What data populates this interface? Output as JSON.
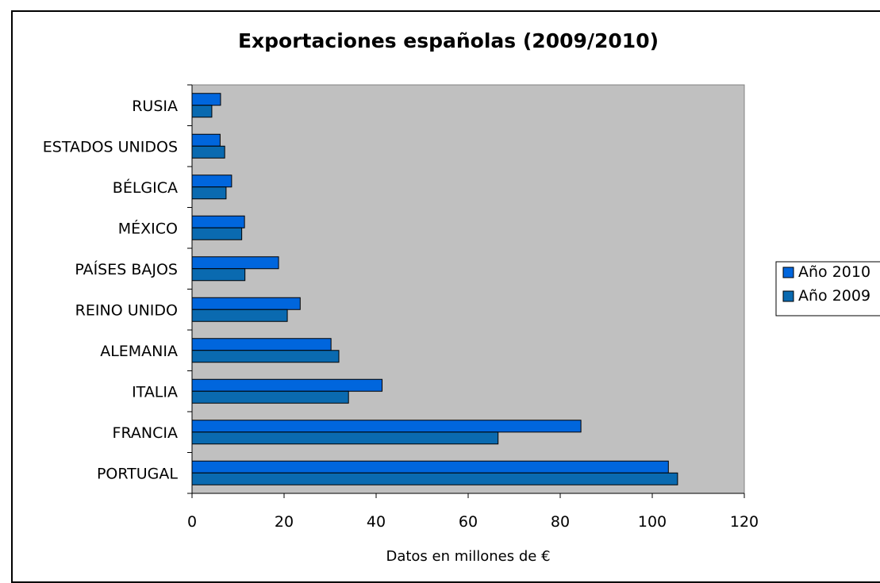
{
  "chart_data": {
    "type": "bar",
    "orientation": "horizontal",
    "title": "Exportaciones españolas (2009/2010)",
    "xlabel": "Datos en millones de €",
    "ylabel": "",
    "xlim": [
      0,
      120
    ],
    "x_ticks": [
      "0",
      "20",
      "40",
      "60",
      "80",
      "100",
      "120"
    ],
    "categories": [
      "PORTUGAL",
      "FRANCIA",
      "ITALIA",
      "ALEMANIA",
      "REINO UNIDO",
      "PAÍSES BAJOS",
      "MÉXICO",
      "BÉLGICA",
      "ESTADOS UNIDOS",
      "RUSIA"
    ],
    "series": [
      {
        "name": "Año 2010",
        "color": "#0066dd",
        "values": [
          103.5,
          84.5,
          41.3,
          30.2,
          23.5,
          18.8,
          11.4,
          8.6,
          6.1,
          6.2
        ]
      },
      {
        "name": "Año 2009",
        "color": "#0a6ab0",
        "values": [
          105.5,
          66.5,
          34,
          31.9,
          20.7,
          11.5,
          10.8,
          7.4,
          7.1,
          4.3
        ]
      }
    ],
    "plot_background": "#c0c0c0",
    "grid": false,
    "legend_position": "right"
  }
}
